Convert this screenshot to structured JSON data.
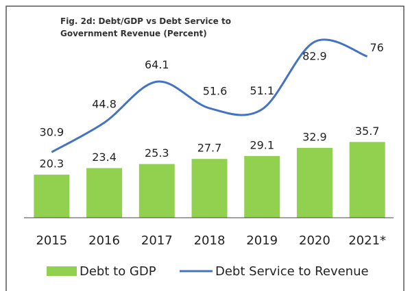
{
  "chart_data": {
    "type": "bar-line",
    "title": "Fig. 2d: Debt/GDP vs Debt Service to Government Revenue (Percent)",
    "categories": [
      "2015",
      "2016",
      "2017",
      "2018",
      "2019",
      "2020",
      "2021*"
    ],
    "series": [
      {
        "name": "Debt to GDP",
        "type": "bar",
        "color": "#92d050",
        "values": [
          20.3,
          23.4,
          25.3,
          27.7,
          29.1,
          32.9,
          35.7
        ]
      },
      {
        "name": "Debt Service to Revenue",
        "type": "line",
        "color": "#4472c4",
        "values": [
          30.9,
          44.8,
          64.1,
          51.6,
          51.1,
          82.9,
          76
        ]
      }
    ],
    "ylim": [
      0,
      85
    ],
    "legend": "bottom"
  }
}
